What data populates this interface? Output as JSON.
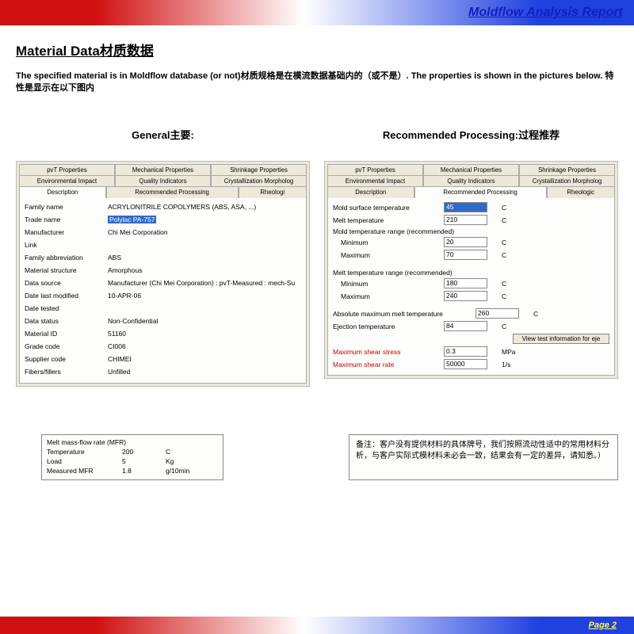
{
  "header": {
    "title": "Moldflow Analysis Report"
  },
  "section": {
    "title": "Material Data材质数据",
    "intro": "The specified material is in Moldflow database (or not)材质规格是在模流数据基础内的（或不是）. The properties is shown in the pictures below. 特性是显示在以下图内"
  },
  "general": {
    "title": "General主要:",
    "tabs_row1": [
      "pvT Properties",
      "Mechanical Properties",
      "Shrinkage Properties"
    ],
    "tabs_row2": [
      "Environmental Impact",
      "Quality Indicators",
      "Crystallization Morpholog"
    ],
    "tabs_row3": [
      "Description",
      "Recommended Processing",
      "Rheologi"
    ],
    "active": 0,
    "props": [
      {
        "label": "Family name",
        "value": "ACRYLONITRILE COPOLYMERS (ABS, ASA, ...)"
      },
      {
        "label": "Trade name",
        "value": "Polylac PA-757",
        "highlight": true
      },
      {
        "label": "Manufacturer",
        "value": "Chi Mei Corporation"
      },
      {
        "label": "Link",
        "value": ""
      },
      {
        "label": "Family abbreviation",
        "value": "ABS"
      },
      {
        "label": "Material structure",
        "value": "Amorphous"
      },
      {
        "label": "Data source",
        "value": "Manufacturer (Chi Mei Corporation) : pvT-Measured : mech-Su"
      },
      {
        "label": "Date last modified",
        "value": "10-APR-06"
      },
      {
        "label": "Date tested",
        "value": ""
      },
      {
        "label": "Data status",
        "value": "Non-Confidential"
      },
      {
        "label": "Material ID",
        "value": "51160"
      },
      {
        "label": "Grade code",
        "value": "CI006"
      },
      {
        "label": "Supplier code",
        "value": "CHIMEI"
      },
      {
        "label": "Fibers/fillers",
        "value": "Unfilled"
      }
    ]
  },
  "proc": {
    "title": "Recommended Processing:过程推荐",
    "tabs_row1": [
      "pvT Properties",
      "Mechanical Properties",
      "Shrinkage Properties"
    ],
    "tabs_row2": [
      "Environmental Impact",
      "Quality Indicators",
      "Crystallization Morpholog"
    ],
    "tabs_row3": [
      "Description",
      "Recommended Processing",
      "Rheologic"
    ],
    "rows": [
      {
        "label": "Mold surface temperature",
        "value": "45",
        "unit": "C",
        "hl": true
      },
      {
        "label": "Melt temperature",
        "value": "210",
        "unit": "C"
      }
    ],
    "hdr1": "Mold temperature range (recommended)",
    "rows2": [
      {
        "label": "Minimum",
        "value": "20",
        "unit": "C",
        "indent": true
      },
      {
        "label": "Maximum",
        "value": "70",
        "unit": "C",
        "indent": true
      }
    ],
    "hdr2": "Melt temperature range (recommended)",
    "rows3": [
      {
        "label": "Minimum",
        "value": "180",
        "unit": "C",
        "indent": true
      },
      {
        "label": "Maximum",
        "value": "240",
        "unit": "C",
        "indent": true
      }
    ],
    "rows4": [
      {
        "label": "Absolute maximum melt temperature",
        "value": "260",
        "unit": "C",
        "wide": true
      },
      {
        "label": "Ejection temperature",
        "value": "84",
        "unit": "C"
      }
    ],
    "button": "View test information for eje",
    "rows5": [
      {
        "label": "Maximum shear stress",
        "value": "0.3",
        "unit": "MPa",
        "red": true
      },
      {
        "label": "Maximum shear rate",
        "value": "50000",
        "unit": "1/s",
        "red": true
      }
    ]
  },
  "mfr": {
    "title": "Melt mass-flow rate (MFR)",
    "rows": [
      {
        "label": "Temperature",
        "value": "200",
        "unit": "C"
      },
      {
        "label": "Load",
        "value": "5",
        "unit": "Kg"
      },
      {
        "label": "Measured MFR",
        "value": "1.8",
        "unit": "g/10min"
      }
    ]
  },
  "note": "备注：客户没有提供材料的具体牌号，我们按照流动性适中的常用材料分析，与客户实际式模材料未必会一致，结果会有一定的差异，请知悉。）",
  "footer": {
    "page": "Page  2"
  }
}
